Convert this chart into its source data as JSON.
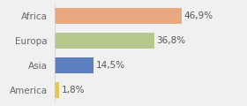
{
  "categories": [
    "Africa",
    "Europa",
    "Asia",
    "America"
  ],
  "values": [
    46.9,
    36.8,
    14.5,
    1.8
  ],
  "labels": [
    "46,9%",
    "36,8%",
    "14,5%",
    "1,8%"
  ],
  "bar_colors": [
    "#e8a97e",
    "#b5c98e",
    "#5b7fbf",
    "#e8c84a"
  ],
  "background_color": "#f0f0f0",
  "xlim": [
    0,
    60
  ],
  "bar_height": 0.65,
  "label_fontsize": 7.5,
  "tick_fontsize": 7.5,
  "label_color": "#555555",
  "tick_color": "#666666"
}
